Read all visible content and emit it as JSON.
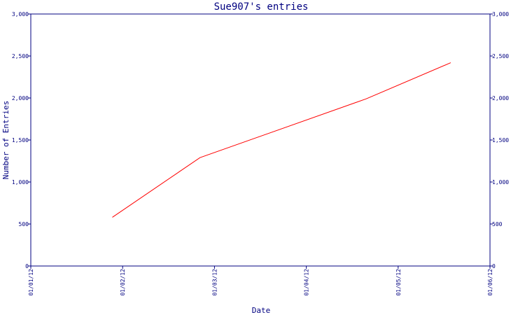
{
  "chart_data": {
    "type": "line",
    "title": "Sue907's entries",
    "xlabel": "Date",
    "ylabel": "Number of Entries",
    "x_ticks": [
      "01/01/12",
      "01/02/12",
      "01/03/12",
      "01/04/12",
      "01/05/12",
      "01/06/12"
    ],
    "y_ticks": [
      "0",
      "500",
      "1,000",
      "1,500",
      "2,000",
      "2,500",
      "3,000"
    ],
    "ylim": [
      0,
      3000
    ],
    "xlim": [
      "2012-01-01",
      "2012-06-01"
    ],
    "grid": false,
    "legend": "none",
    "series": [
      {
        "points": [
          {
            "x": "2012-01-28",
            "y": 580
          },
          {
            "x": "2012-02-26",
            "y": 1290
          },
          {
            "x": "2012-04-21",
            "y": 1990
          },
          {
            "x": "2012-05-19",
            "y": 2420
          }
        ]
      }
    ],
    "colors": {
      "axis": "#000080",
      "line": "#ff0000"
    }
  }
}
